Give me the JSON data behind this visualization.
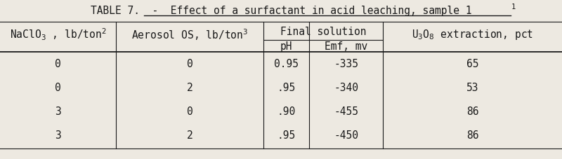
{
  "title": "TABLE 7.  -  Effect of a surfactant in acid leaching, sample 1",
  "bg_color": "#ede9e1",
  "text_color": "#1a1a1a",
  "rows": [
    [
      "0",
      "0",
      "0.95",
      "-335",
      "65"
    ],
    [
      "0",
      "2",
      ".95",
      "-340",
      "53"
    ],
    [
      "3",
      "0",
      ".90",
      "-455",
      "86"
    ],
    [
      "3",
      "2",
      ".95",
      "-450",
      "86"
    ]
  ],
  "font_size": 10.5,
  "font_family": "DejaVu Sans Mono"
}
